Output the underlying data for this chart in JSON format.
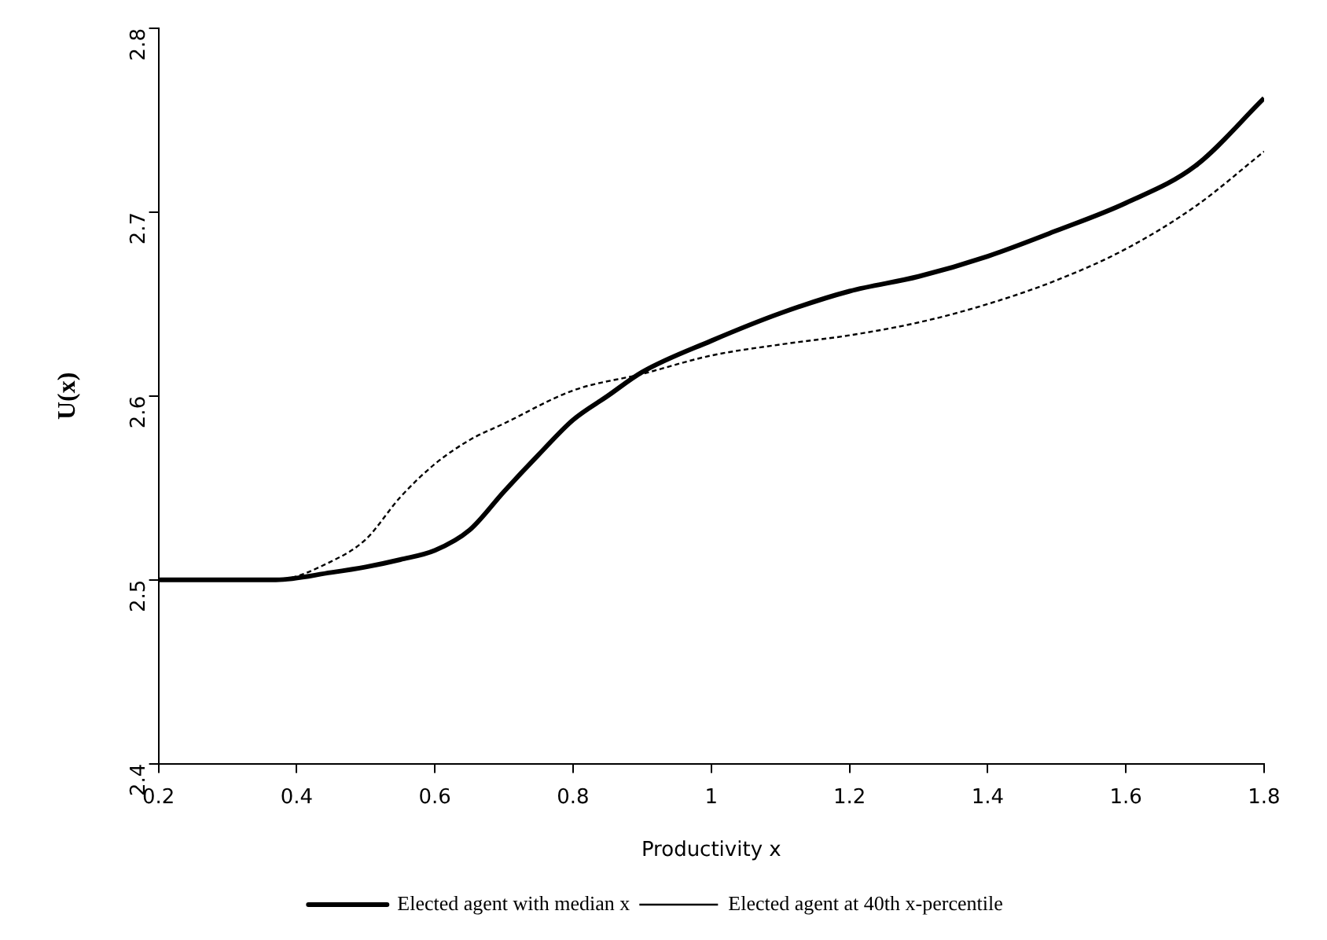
{
  "chart_data": {
    "type": "line",
    "xlabel": "Productivity x",
    "ylabel": "U(x)",
    "xlim": [
      0.2,
      1.8
    ],
    "xticks": [
      0.2,
      0.4,
      0.6,
      0.8,
      1,
      1.2,
      1.4,
      1.6,
      1.8
    ],
    "ylim": [
      2.4,
      2.8
    ],
    "yticks": [
      2.4,
      2.5,
      2.6,
      2.7,
      2.8
    ],
    "grid": false,
    "legend": "bottom",
    "marker": "none",
    "series": [
      {
        "name": "Elected agent with median x",
        "color": "#000000",
        "line_style": "solid",
        "x": [
          0.2,
          0.37,
          0.45,
          0.5,
          0.55,
          0.6,
          0.65,
          0.7,
          0.75,
          0.8,
          0.85,
          0.9,
          1.0,
          1.1,
          1.2,
          1.3,
          1.4,
          1.5,
          1.6,
          1.7,
          1.8
        ],
        "values": [
          2.5,
          2.5,
          2.504,
          2.507,
          2.511,
          2.516,
          2.527,
          2.548,
          2.568,
          2.587,
          2.6,
          2.613,
          2.63,
          2.645,
          2.657,
          2.665,
          2.676,
          2.69,
          2.705,
          2.725,
          2.762
        ]
      },
      {
        "name": "Elected agent at 40th x-percentile",
        "color": "#000000",
        "line_style": "dashed",
        "x": [
          0.2,
          0.37,
          0.45,
          0.5,
          0.55,
          0.6,
          0.65,
          0.7,
          0.8,
          0.9,
          1.0,
          1.1,
          1.2,
          1.3,
          1.4,
          1.5,
          1.6,
          1.7,
          1.8
        ],
        "values": [
          2.5,
          2.5,
          2.51,
          2.522,
          2.545,
          2.563,
          2.576,
          2.585,
          2.603,
          2.612,
          2.622,
          2.628,
          2.633,
          2.64,
          2.65,
          2.663,
          2.68,
          2.703,
          2.733
        ]
      }
    ]
  }
}
